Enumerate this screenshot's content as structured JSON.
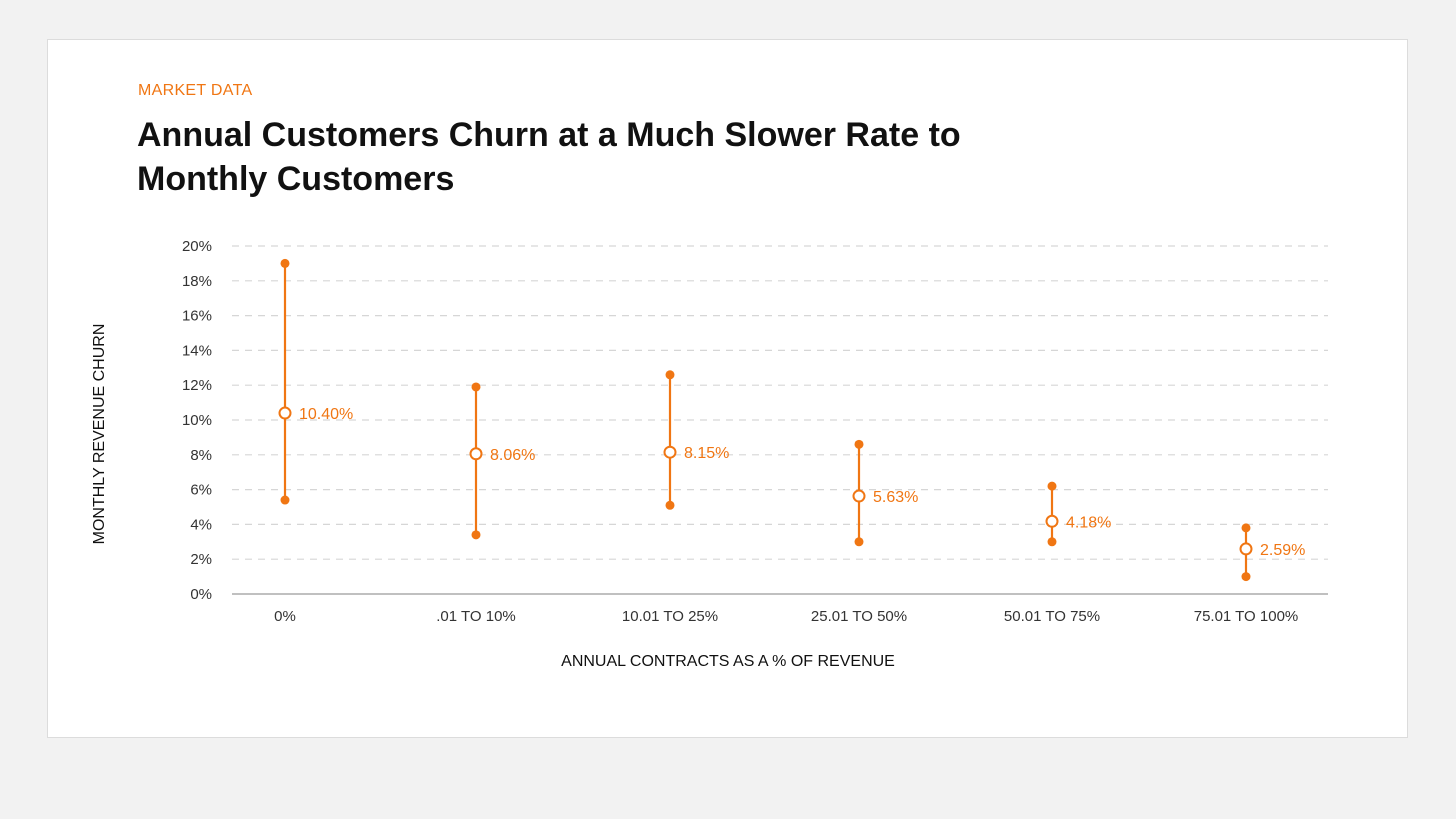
{
  "eyebrow": "MARKET DATA",
  "title": "Annual Customers Churn at a Much Slower Rate to Monthly Customers",
  "colors": {
    "accent": "#f07613",
    "grid": "#d6d6d6",
    "axis": "#9a9a9a",
    "background": "#ffffff"
  },
  "chart_data": {
    "type": "range",
    "xlabel": "ANNUAL CONTRACTS AS A % OF REVENUE",
    "ylabel": "MONTHLY REVENUE CHURN",
    "ylim": [
      0,
      20
    ],
    "y_ticks": [
      0,
      2,
      4,
      6,
      8,
      10,
      12,
      14,
      16,
      18,
      20
    ],
    "y_tick_labels": [
      "0%",
      "2%",
      "4%",
      "6%",
      "8%",
      "10%",
      "12%",
      "14%",
      "16%",
      "18%",
      "20%"
    ],
    "grid": "horizontal dashed",
    "categories": [
      "0%",
      ".01 TO 10%",
      "10.01 TO 25%",
      "25.01 TO 50%",
      "50.01 TO 75%",
      "75.01 TO 100%"
    ],
    "median": [
      10.4,
      8.06,
      8.15,
      5.63,
      4.18,
      2.59
    ],
    "median_labels": [
      "10.40%",
      "8.06%",
      "8.15%",
      "5.63%",
      "4.18%",
      "2.59%"
    ],
    "high": [
      19.0,
      11.9,
      12.6,
      8.6,
      6.2,
      3.8
    ],
    "low": [
      5.4,
      3.4,
      5.1,
      3.0,
      3.0,
      1.0
    ]
  }
}
